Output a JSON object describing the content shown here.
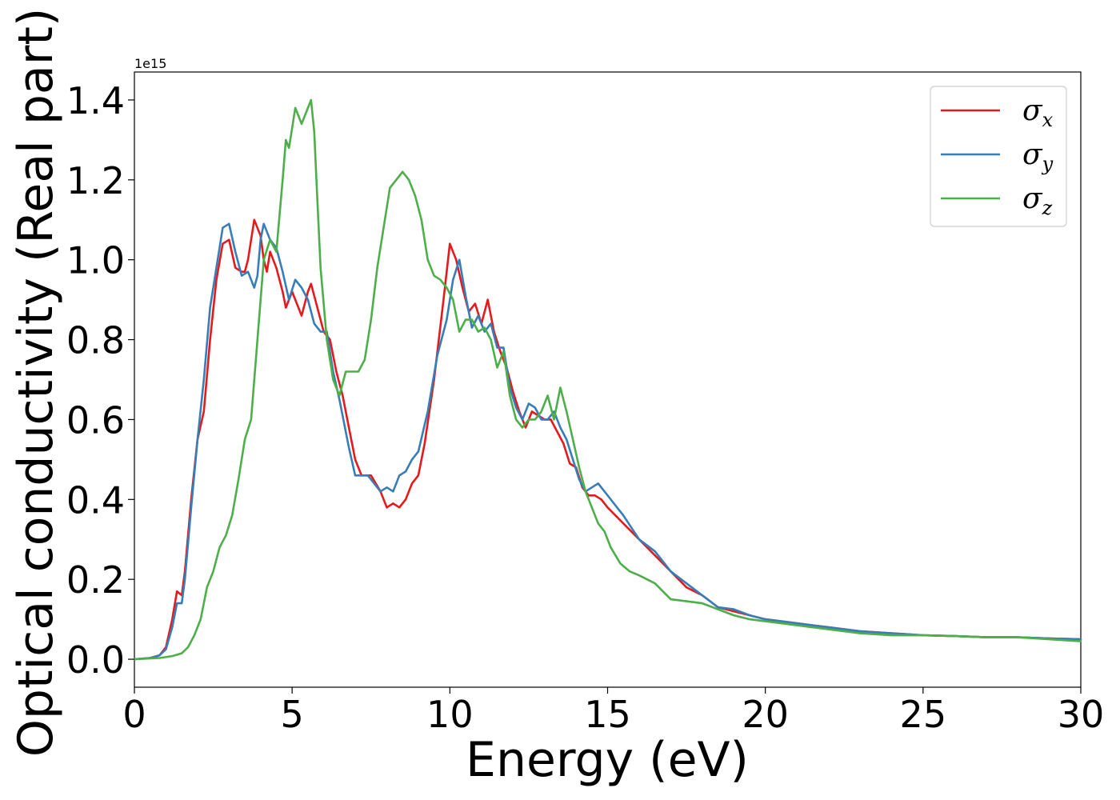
{
  "chart_data": {
    "type": "line",
    "xlabel": "Energy (eV)",
    "ylabel": "Optical conductivity (Real part)",
    "offset_text": "1e15",
    "xlim": [
      0,
      30
    ],
    "ylim": [
      -0.07,
      1.47
    ],
    "xticks": [
      0,
      5,
      10,
      15,
      20,
      25,
      30
    ],
    "xtick_labels": [
      "0",
      "5",
      "10",
      "15",
      "20",
      "25",
      "30"
    ],
    "yticks": [
      0.0,
      0.2,
      0.4,
      0.6,
      0.8,
      1.0,
      1.2,
      1.4
    ],
    "ytick_labels": [
      "0.0",
      "0.2",
      "0.4",
      "0.6",
      "0.8",
      "1.0",
      "1.2",
      "1.4"
    ],
    "grid": false,
    "legend_position": "top-right",
    "series": [
      {
        "name": "σx",
        "legend": {
          "main": "σ",
          "sub": "x"
        },
        "color": "#e41a1c",
        "x": [
          0,
          0.5,
          0.8,
          1.0,
          1.2,
          1.35,
          1.5,
          1.6,
          1.8,
          2.0,
          2.2,
          2.4,
          2.6,
          2.8,
          3.0,
          3.2,
          3.4,
          3.5,
          3.6,
          3.8,
          4.0,
          4.1,
          4.2,
          4.3,
          4.5,
          4.7,
          4.8,
          5.0,
          5.1,
          5.3,
          5.5,
          5.6,
          5.8,
          6.0,
          6.2,
          6.4,
          6.6,
          6.8,
          7.0,
          7.2,
          7.5,
          7.8,
          8.0,
          8.2,
          8.4,
          8.6,
          8.8,
          9.0,
          9.2,
          9.5,
          9.8,
          10.0,
          10.2,
          10.4,
          10.6,
          10.8,
          11.0,
          11.2,
          11.4,
          11.6,
          11.8,
          12.0,
          12.2,
          12.4,
          12.6,
          12.8,
          13.0,
          13.2,
          13.4,
          13.6,
          13.8,
          14.0,
          14.2,
          14.4,
          14.6,
          14.8,
          15.0,
          15.5,
          16.0,
          16.5,
          17.0,
          17.5,
          18.0,
          18.5,
          19.0,
          19.5,
          20.0,
          21,
          22,
          23,
          24,
          25,
          26,
          27,
          28,
          29,
          30
        ],
        "y": [
          0.0,
          0.003,
          0.01,
          0.03,
          0.1,
          0.17,
          0.16,
          0.22,
          0.4,
          0.55,
          0.62,
          0.8,
          0.95,
          1.04,
          1.05,
          0.98,
          0.97,
          0.97,
          1.0,
          1.1,
          1.06,
          1.0,
          0.97,
          1.02,
          0.98,
          0.92,
          0.88,
          0.92,
          0.9,
          0.86,
          0.92,
          0.94,
          0.88,
          0.82,
          0.8,
          0.72,
          0.66,
          0.58,
          0.5,
          0.46,
          0.46,
          0.42,
          0.38,
          0.39,
          0.38,
          0.4,
          0.44,
          0.46,
          0.54,
          0.7,
          0.9,
          1.04,
          1.0,
          0.93,
          0.87,
          0.89,
          0.84,
          0.9,
          0.82,
          0.77,
          0.73,
          0.67,
          0.62,
          0.58,
          0.62,
          0.61,
          0.6,
          0.6,
          0.57,
          0.54,
          0.49,
          0.48,
          0.43,
          0.41,
          0.41,
          0.4,
          0.38,
          0.34,
          0.3,
          0.26,
          0.22,
          0.18,
          0.16,
          0.13,
          0.12,
          0.11,
          0.1,
          0.09,
          0.08,
          0.07,
          0.065,
          0.06,
          0.058,
          0.055,
          0.055,
          0.052,
          0.05
        ]
      },
      {
        "name": "σy",
        "legend": {
          "main": "σ",
          "sub": "y"
        },
        "color": "#377eb8",
        "x": [
          0,
          0.5,
          0.8,
          1.0,
          1.2,
          1.35,
          1.5,
          1.6,
          1.8,
          2.0,
          2.2,
          2.4,
          2.6,
          2.8,
          3.0,
          3.2,
          3.4,
          3.6,
          3.8,
          3.9,
          4.0,
          4.1,
          4.3,
          4.5,
          4.7,
          4.9,
          5.1,
          5.3,
          5.5,
          5.7,
          5.9,
          6.1,
          6.3,
          6.5,
          6.8,
          7.0,
          7.2,
          7.4,
          7.6,
          7.8,
          8.0,
          8.2,
          8.4,
          8.6,
          8.8,
          9.0,
          9.3,
          9.6,
          9.9,
          10.1,
          10.3,
          10.5,
          10.7,
          10.9,
          11.1,
          11.3,
          11.5,
          11.7,
          11.9,
          12.1,
          12.3,
          12.5,
          12.7,
          12.9,
          13.1,
          13.3,
          13.5,
          13.7,
          13.9,
          14.1,
          14.3,
          14.5,
          14.7,
          14.9,
          15.2,
          15.5,
          16.0,
          16.5,
          17.0,
          17.5,
          18.0,
          18.5,
          19.0,
          19.5,
          20.0,
          21,
          22,
          23,
          24,
          25,
          26,
          27,
          28,
          29,
          30
        ],
        "y": [
          0.0,
          0.003,
          0.01,
          0.025,
          0.08,
          0.14,
          0.14,
          0.2,
          0.38,
          0.55,
          0.7,
          0.88,
          0.98,
          1.08,
          1.09,
          1.02,
          0.96,
          0.97,
          0.93,
          0.96,
          1.05,
          1.09,
          1.05,
          1.03,
          0.97,
          0.9,
          0.95,
          0.93,
          0.9,
          0.84,
          0.82,
          0.82,
          0.72,
          0.65,
          0.53,
          0.46,
          0.46,
          0.46,
          0.44,
          0.42,
          0.43,
          0.42,
          0.46,
          0.47,
          0.5,
          0.52,
          0.62,
          0.76,
          0.85,
          0.95,
          1.0,
          0.91,
          0.83,
          0.86,
          0.82,
          0.84,
          0.78,
          0.78,
          0.68,
          0.63,
          0.6,
          0.64,
          0.63,
          0.6,
          0.6,
          0.62,
          0.58,
          0.55,
          0.5,
          0.45,
          0.42,
          0.43,
          0.44,
          0.42,
          0.39,
          0.36,
          0.3,
          0.27,
          0.22,
          0.19,
          0.16,
          0.13,
          0.125,
          0.11,
          0.1,
          0.09,
          0.08,
          0.07,
          0.065,
          0.06,
          0.058,
          0.055,
          0.055,
          0.052,
          0.05
        ]
      },
      {
        "name": "σz",
        "legend": {
          "main": "σ",
          "sub": "z"
        },
        "color": "#4daf4a",
        "x": [
          0,
          0.8,
          1.2,
          1.5,
          1.7,
          1.9,
          2.1,
          2.3,
          2.5,
          2.7,
          2.9,
          3.1,
          3.3,
          3.5,
          3.7,
          3.9,
          4.1,
          4.3,
          4.5,
          4.7,
          4.8,
          4.9,
          5.0,
          5.1,
          5.2,
          5.3,
          5.4,
          5.5,
          5.6,
          5.7,
          5.8,
          5.9,
          6.1,
          6.3,
          6.5,
          6.7,
          6.9,
          7.1,
          7.3,
          7.5,
          7.7,
          7.9,
          8.1,
          8.3,
          8.5,
          8.7,
          8.9,
          9.1,
          9.3,
          9.5,
          9.7,
          9.9,
          10.1,
          10.3,
          10.5,
          10.7,
          10.9,
          11.1,
          11.3,
          11.5,
          11.7,
          11.9,
          12.1,
          12.3,
          12.5,
          12.7,
          12.9,
          13.1,
          13.3,
          13.5,
          13.7,
          13.9,
          14.1,
          14.3,
          14.5,
          14.7,
          14.9,
          15.1,
          15.4,
          15.7,
          16.0,
          16.5,
          17.0,
          17.5,
          18.0,
          18.5,
          19.0,
          19.5,
          20.0,
          21,
          22,
          23,
          24,
          25,
          26,
          27,
          28,
          29,
          30
        ],
        "y": [
          0.0,
          0.003,
          0.008,
          0.015,
          0.03,
          0.06,
          0.1,
          0.18,
          0.22,
          0.28,
          0.31,
          0.36,
          0.45,
          0.55,
          0.6,
          0.8,
          1.0,
          1.05,
          1.02,
          1.2,
          1.3,
          1.28,
          1.33,
          1.38,
          1.36,
          1.34,
          1.36,
          1.38,
          1.4,
          1.32,
          1.15,
          0.98,
          0.8,
          0.7,
          0.66,
          0.72,
          0.72,
          0.72,
          0.75,
          0.85,
          0.98,
          1.08,
          1.18,
          1.2,
          1.22,
          1.2,
          1.16,
          1.1,
          1.0,
          0.96,
          0.95,
          0.93,
          0.9,
          0.82,
          0.85,
          0.85,
          0.82,
          0.83,
          0.8,
          0.73,
          0.77,
          0.66,
          0.6,
          0.58,
          0.6,
          0.6,
          0.62,
          0.66,
          0.6,
          0.68,
          0.62,
          0.55,
          0.48,
          0.42,
          0.38,
          0.34,
          0.32,
          0.28,
          0.24,
          0.22,
          0.21,
          0.19,
          0.15,
          0.145,
          0.14,
          0.125,
          0.11,
          0.1,
          0.095,
          0.085,
          0.075,
          0.065,
          0.06,
          0.06,
          0.058,
          0.055,
          0.055,
          0.05,
          0.045
        ]
      }
    ]
  }
}
